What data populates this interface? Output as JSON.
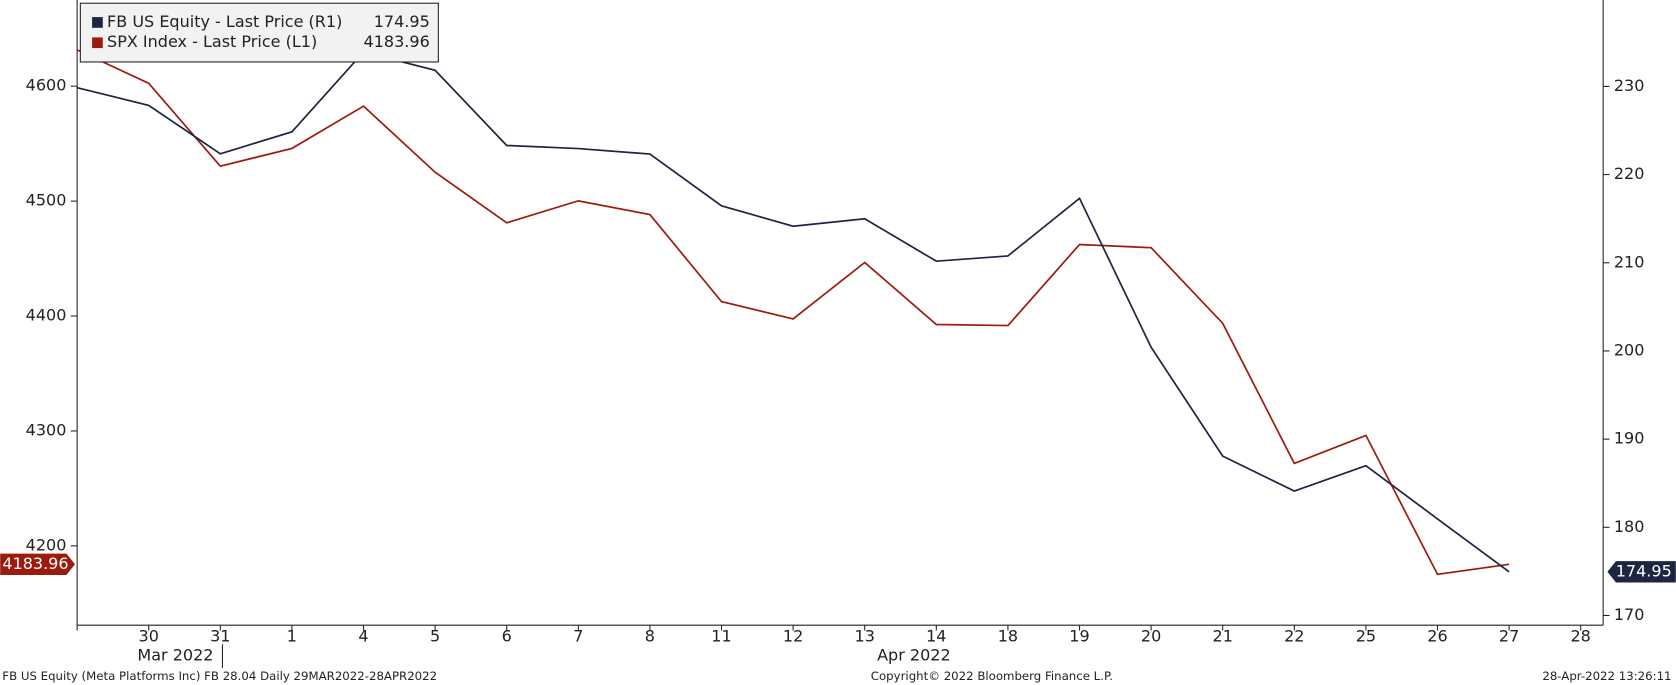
{
  "chart_data": {
    "type": "line",
    "categories": [
      null,
      "30",
      "31",
      "1",
      "4",
      "5",
      "6",
      "7",
      "8",
      "11",
      "12",
      "13",
      "14",
      "18",
      "19",
      "20",
      "21",
      "22",
      "25",
      "26",
      "27",
      "28"
    ],
    "x_groups": [
      "Mar 2022",
      "Apr 2022"
    ],
    "series": [
      {
        "name": "FB US Equity - Last Price (R1)",
        "color": "#1c2541",
        "axis": "y2",
        "values": [
          229.86,
          227.85,
          222.36,
          224.85,
          233.89,
          231.83,
          223.3,
          222.95,
          222.33,
          216.46,
          214.14,
          214.99,
          210.18,
          210.77,
          217.31,
          200.42,
          188.07,
          184.11,
          186.99,
          180.95,
          174.95,
          null
        ]
      },
      {
        "name": "SPX Index - Last Price (L1)",
        "color": "#9b1b0e",
        "values": [
          4631.6,
          4602.45,
          4530.41,
          4545.86,
          4582.64,
          4525.12,
          4481.15,
          4500.21,
          4488.28,
          4412.53,
          4397.45,
          4446.59,
          4392.59,
          4391.69,
          4462.21,
          4459.45,
          4393.66,
          4271.78,
          4296.12,
          4175.2,
          4183.96,
          null
        ]
      }
    ],
    "ylim": [
      4131,
      4675
    ],
    "yticks": [
      4200,
      4300,
      4400,
      4500,
      4600
    ],
    "y2lim": [
      168.9,
      239.8
    ],
    "y2ticks": [
      170,
      180,
      190,
      200,
      210,
      220,
      230
    ],
    "footer": {
      "left": "FB US Equity (Meta Platforms Inc) FB 28.04  Daily 29MAR2022-28APR2022",
      "center": "Copyright© 2022 Bloomberg Finance L.P.",
      "right": "28-Apr-2022 13:26:11"
    }
  }
}
